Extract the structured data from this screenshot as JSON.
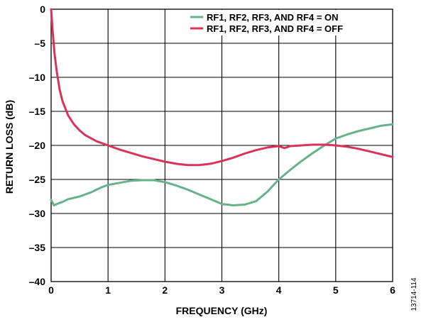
{
  "chart_data": {
    "type": "line",
    "xlabel": "FREQUENCY (GHz)",
    "ylabel": "RETURN LOSS (dB)",
    "xlim": [
      0,
      6
    ],
    "ylim": [
      -40,
      0
    ],
    "xticks": [
      "0",
      "1",
      "2",
      "3",
      "4",
      "5",
      "6"
    ],
    "yticks": [
      "0",
      "–5",
      "–10",
      "–15",
      "–20",
      "–25",
      "–30",
      "–35",
      "–40"
    ],
    "grid": true,
    "legend_position": "top-right",
    "series": [
      {
        "name": "RF1, RF2, RF3, AND RF4 = ON",
        "color": "#66b28a",
        "x": [
          0.0,
          0.05,
          0.1,
          0.2,
          0.3,
          0.4,
          0.5,
          0.6,
          0.7,
          0.8,
          0.9,
          1.0,
          1.2,
          1.4,
          1.6,
          1.8,
          2.0,
          2.2,
          2.4,
          2.6,
          2.8,
          3.0,
          3.2,
          3.4,
          3.6,
          3.8,
          4.0,
          4.2,
          4.4,
          4.6,
          4.8,
          5.0,
          5.2,
          5.4,
          5.6,
          5.8,
          6.0
        ],
        "y": [
          -28.0,
          -28.8,
          -28.6,
          -28.3,
          -27.9,
          -27.7,
          -27.5,
          -27.2,
          -26.9,
          -26.5,
          -26.1,
          -25.8,
          -25.5,
          -25.2,
          -25.1,
          -25.1,
          -25.4,
          -25.9,
          -26.5,
          -27.2,
          -27.9,
          -28.6,
          -28.8,
          -28.7,
          -28.2,
          -26.8,
          -25.0,
          -23.6,
          -22.3,
          -21.1,
          -20.0,
          -19.0,
          -18.4,
          -17.9,
          -17.5,
          -17.1,
          -16.9
        ]
      },
      {
        "name": "RF1, RF2, RF3, AND RF4 = OFF",
        "color": "#d9335a",
        "x": [
          0.0,
          0.03,
          0.06,
          0.1,
          0.15,
          0.2,
          0.3,
          0.4,
          0.5,
          0.6,
          0.8,
          1.0,
          1.2,
          1.4,
          1.6,
          1.8,
          2.0,
          2.2,
          2.4,
          2.6,
          2.8,
          3.0,
          3.2,
          3.4,
          3.6,
          3.8,
          4.0,
          4.1,
          4.2,
          4.4,
          4.6,
          4.8,
          5.0,
          5.2,
          5.4,
          5.6,
          5.8,
          6.0
        ],
        "y": [
          0.0,
          -3.5,
          -6.5,
          -9.2,
          -11.8,
          -13.5,
          -15.6,
          -16.9,
          -17.8,
          -18.5,
          -19.4,
          -20.0,
          -20.6,
          -21.1,
          -21.6,
          -22.0,
          -22.4,
          -22.7,
          -22.9,
          -22.9,
          -22.7,
          -22.3,
          -21.8,
          -21.2,
          -20.7,
          -20.3,
          -20.1,
          -20.4,
          -20.1,
          -20.0,
          -19.9,
          -19.9,
          -20.0,
          -20.2,
          -20.5,
          -20.9,
          -21.3,
          -21.7
        ]
      }
    ]
  },
  "figure_id": "13714-114"
}
